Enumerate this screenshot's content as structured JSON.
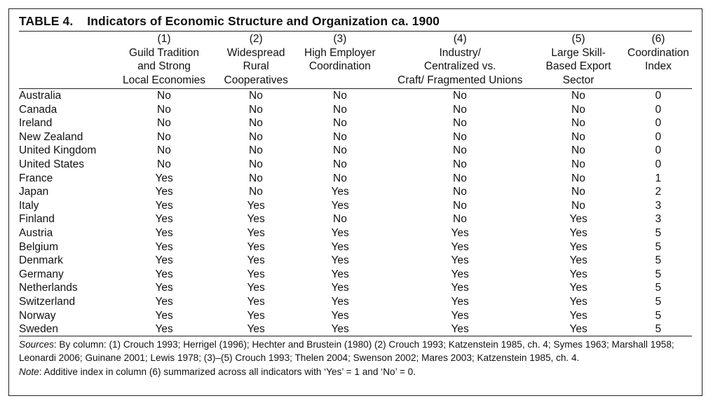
{
  "table": {
    "label": "TABLE 4.",
    "title": "Indicators of Economic Structure and Organization ca. 1900",
    "headers": [
      {
        "lines": [
          "(1)",
          "Guild Tradition",
          "and Strong",
          "Local Economies"
        ]
      },
      {
        "lines": [
          "(2)",
          "Widespread",
          "Rural",
          "Cooperatives"
        ]
      },
      {
        "lines": [
          "(3)",
          "High Employer",
          "Coordination"
        ]
      },
      {
        "lines": [
          "(4)",
          "Industry/",
          "Centralized vs.",
          "Craft/ Fragmented Unions"
        ]
      },
      {
        "lines": [
          "(5)",
          "Large Skill-",
          "Based Export",
          "Sector"
        ]
      },
      {
        "lines": [
          "(6)",
          "Coordination",
          "Index"
        ]
      }
    ],
    "rows": [
      {
        "country": "Australia",
        "cells": [
          "No",
          "No",
          "No",
          "No",
          "No",
          "0"
        ]
      },
      {
        "country": "Canada",
        "cells": [
          "No",
          "No",
          "No",
          "No",
          "No",
          "0"
        ]
      },
      {
        "country": "Ireland",
        "cells": [
          "No",
          "No",
          "No",
          "No",
          "No",
          "0"
        ]
      },
      {
        "country": "New Zealand",
        "cells": [
          "No",
          "No",
          "No",
          "No",
          "No",
          "0"
        ]
      },
      {
        "country": "United Kingdom",
        "cells": [
          "No",
          "No",
          "No",
          "No",
          "No",
          "0"
        ]
      },
      {
        "country": "United States",
        "cells": [
          "No",
          "No",
          "No",
          "No",
          "No",
          "0"
        ]
      },
      {
        "country": "France",
        "cells": [
          "Yes",
          "No",
          "No",
          "No",
          "No",
          "1"
        ]
      },
      {
        "country": "Japan",
        "cells": [
          "Yes",
          "No",
          "Yes",
          "No",
          "No",
          "2"
        ]
      },
      {
        "country": "Italy",
        "cells": [
          "Yes",
          "Yes",
          "Yes",
          "No",
          "No",
          "3"
        ]
      },
      {
        "country": "Finland",
        "cells": [
          "Yes",
          "Yes",
          "No",
          "No",
          "Yes",
          "3"
        ]
      },
      {
        "country": "Austria",
        "cells": [
          "Yes",
          "Yes",
          "Yes",
          "Yes",
          "Yes",
          "5"
        ]
      },
      {
        "country": "Belgium",
        "cells": [
          "Yes",
          "Yes",
          "Yes",
          "Yes",
          "Yes",
          "5"
        ]
      },
      {
        "country": "Denmark",
        "cells": [
          "Yes",
          "Yes",
          "Yes",
          "Yes",
          "Yes",
          "5"
        ]
      },
      {
        "country": "Germany",
        "cells": [
          "Yes",
          "Yes",
          "Yes",
          "Yes",
          "Yes",
          "5"
        ]
      },
      {
        "country": "Netherlands",
        "cells": [
          "Yes",
          "Yes",
          "Yes",
          "Yes",
          "Yes",
          "5"
        ]
      },
      {
        "country": "Switzerland",
        "cells": [
          "Yes",
          "Yes",
          "Yes",
          "Yes",
          "Yes",
          "5"
        ]
      },
      {
        "country": "Norway",
        "cells": [
          "Yes",
          "Yes",
          "Yes",
          "Yes",
          "Yes",
          "5"
        ]
      },
      {
        "country": "Sweden",
        "cells": [
          "Yes",
          "Yes",
          "Yes",
          "Yes",
          "Yes",
          "5"
        ]
      }
    ]
  },
  "notes": {
    "sources_label": "Sources",
    "sources_text": ": By column: (1) Crouch 1993; Herrigel (1996); Hechter and Brustein (1980) (2) Crouch 1993; Katzenstein 1985, ch. 4; Symes 1963; Marshall 1958; Leonardi 2006; Guinane 2001; Lewis 1978; (3)–(5) Crouch 1993; Thelen 2004; Swenson 2002; Mares 2003; Katzenstein 1985, ch. 4.",
    "note_label": "Note",
    "note_text": ": Additive index in column (6) summarized across all indicators with ‘Yes’ = 1 and ‘No’ = 0."
  }
}
